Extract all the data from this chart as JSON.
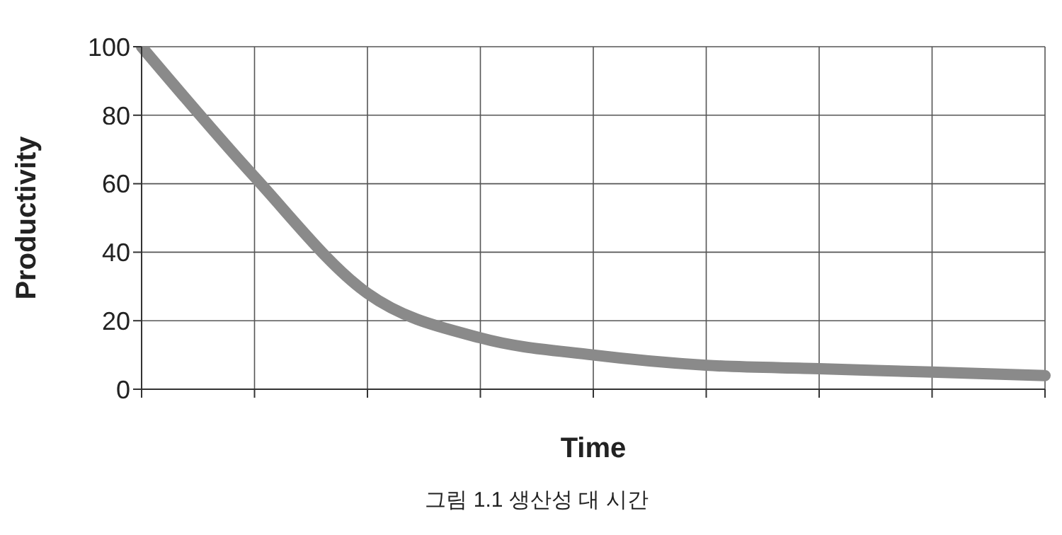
{
  "chart_data": {
    "type": "line",
    "xlabel": "Time",
    "ylabel": "Productivity",
    "categories": [
      null,
      null,
      null,
      null,
      null,
      null,
      null,
      null,
      null
    ],
    "series": [
      {
        "color": "#8a8a8a",
        "values": [
          100,
          62,
          28,
          15,
          10,
          7,
          6,
          5,
          4
        ]
      }
    ],
    "ylim": [
      0,
      100
    ],
    "yticks": [
      0,
      20,
      40,
      60,
      80,
      100
    ],
    "grid": true,
    "marker": "none",
    "line_style": "solid",
    "annotations": [
      "그림 1.1 생산성 대 시간"
    ]
  }
}
